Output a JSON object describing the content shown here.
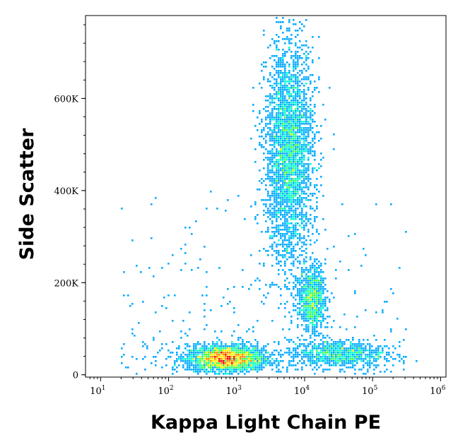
{
  "chart_data": {
    "type": "scatter",
    "style": "density-dot-plot",
    "title": "",
    "xlabel": "Kappa Light Chain PE",
    "ylabel": "Side Scatter",
    "x_scale": "log",
    "xlim": [
      6,
      1200000
    ],
    "ylim": [
      -5000,
      780000
    ],
    "x_ticks": [
      {
        "value": 10,
        "base": "10",
        "exp": "1"
      },
      {
        "value": 100,
        "base": "10",
        "exp": "2"
      },
      {
        "value": 1000,
        "base": "10",
        "exp": "3"
      },
      {
        "value": 10000,
        "base": "10",
        "exp": "4"
      },
      {
        "value": 100000,
        "base": "10",
        "exp": "5"
      },
      {
        "value": 1000000,
        "base": "10",
        "exp": "6"
      }
    ],
    "y_ticks": [
      {
        "value": 0,
        "label": "0"
      },
      {
        "value": 200000,
        "label": "200K"
      },
      {
        "value": 400000,
        "label": "400K"
      },
      {
        "value": 600000,
        "label": "600K"
      }
    ],
    "grid": false,
    "colormap": [
      "#0000ff",
      "#00aaff",
      "#00ffcc",
      "#44ff44",
      "#ffee00",
      "#ff8800",
      "#ff0000"
    ],
    "populations": [
      {
        "x_center": 700,
        "y_center": 35000,
        "x_spread": 0.28,
        "y_spread": 14000,
        "density": "high"
      },
      {
        "x_center": 6000,
        "y_center": 480000,
        "x_spread": 0.18,
        "y_spread": 120000,
        "density": "medium"
      },
      {
        "x_center": 13000,
        "y_center": 165000,
        "x_spread": 0.1,
        "y_spread": 35000,
        "density": "low"
      },
      {
        "x_center": 30000,
        "y_center": 45000,
        "x_spread": 0.35,
        "y_spread": 15000,
        "density": "low"
      }
    ]
  }
}
